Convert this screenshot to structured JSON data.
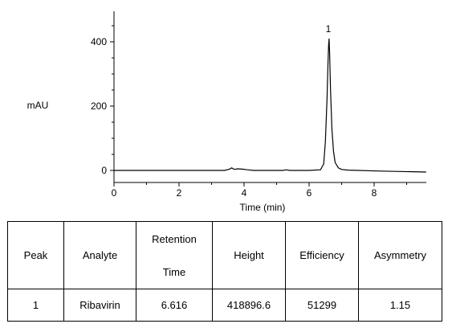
{
  "chart_data": {
    "type": "line",
    "xlabel": "Time (min)",
    "ylabel": "mAU",
    "xlim": [
      0,
      9.6
    ],
    "ylim": [
      -10,
      500
    ],
    "x_ticks": [
      0,
      2,
      4,
      6,
      8
    ],
    "y_ticks": [
      0,
      200,
      400
    ],
    "grid": false,
    "series": [
      {
        "x": [
          0,
          0.8,
          3.4,
          3.55,
          3.62,
          3.7,
          3.8,
          3.95,
          4.1,
          4.3,
          5.2,
          5.3,
          5.4,
          6.0,
          6.35,
          6.45,
          6.5,
          6.55,
          6.58,
          6.6,
          6.616,
          6.63,
          6.66,
          6.7,
          6.75,
          6.8,
          6.9,
          7.0,
          7.2,
          8.2,
          9.6
        ],
        "y": [
          0,
          0,
          0,
          4,
          8,
          3,
          5,
          4,
          2,
          0,
          0,
          2,
          0,
          0,
          2,
          20,
          90,
          220,
          330,
          390,
          410,
          370,
          250,
          130,
          60,
          25,
          8,
          3,
          1,
          -2,
          -5
        ]
      }
    ],
    "annotations": [
      {
        "text": "1",
        "x": 6.616,
        "y": 410
      }
    ]
  },
  "table": {
    "headers": [
      "Peak",
      "Analyte",
      "Retention",
      "Time",
      "Height",
      "Efficiency",
      "Asymmetry"
    ],
    "row": {
      "peak": "1",
      "analyte": "Ribavirin",
      "retention_time": "6.616",
      "height": "418896.6",
      "efficiency": "51299",
      "asymmetry": "1.15"
    }
  }
}
